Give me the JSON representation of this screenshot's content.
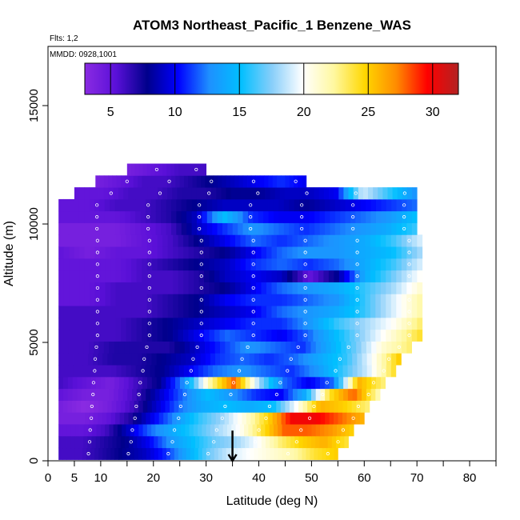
{
  "chart_data": {
    "type": "heatmap",
    "title": "ATOM3 Northeast_Pacific_1 Benzene_WAS",
    "flights_note": "Flts: 1,2",
    "dates_note": "MMDD: 0928,1001",
    "xlabel": "Latitude (deg N)",
    "ylabel": "Altitude (m)",
    "xlim": [
      0,
      85
    ],
    "ylim": [
      0,
      17500
    ],
    "x_ticks": [
      0,
      5,
      10,
      20,
      30,
      40,
      50,
      60,
      70,
      80
    ],
    "x_minor_ticks": [
      15,
      25,
      35,
      45,
      55,
      65,
      75,
      85
    ],
    "y_ticks": [
      0,
      5000,
      10000,
      15000
    ],
    "grid": false,
    "colorbar": {
      "ticks": [
        5,
        10,
        15,
        20,
        25,
        30
      ],
      "range": [
        3,
        32
      ],
      "colors": [
        "#8a2be2",
        "#5a10d8",
        "#00008b",
        "#0000ff",
        "#1e90ff",
        "#00bfff",
        "#87cefa",
        "#ffffff",
        "#fff8a0",
        "#ffd700",
        "#ff8c00",
        "#ff0000",
        "#b22222"
      ],
      "placement": "inside-top"
    },
    "marker": {
      "latitude": 35,
      "altitude_range": [
        600,
        0
      ]
    },
    "rows": [
      {
        "alt": 300,
        "lat_range": [
          2,
          55
        ],
        "values": [
          6,
          6,
          7,
          8,
          9,
          11,
          14,
          17,
          19,
          20,
          21,
          22,
          24,
          25
        ]
      },
      {
        "alt": 800,
        "lat_range": [
          2,
          57
        ],
        "values": [
          6,
          6,
          7,
          8,
          10,
          13,
          15,
          17,
          18,
          20,
          23,
          25,
          26,
          24
        ]
      },
      {
        "alt": 1300,
        "lat_range": [
          2,
          58
        ],
        "values": [
          5,
          5,
          6,
          9,
          12,
          14,
          16,
          18,
          20,
          24,
          28,
          28,
          27,
          25
        ]
      },
      {
        "alt": 1800,
        "lat_range": [
          2,
          60
        ],
        "values": [
          4,
          4,
          5,
          7,
          10,
          13,
          16,
          18,
          21,
          25,
          30,
          30,
          28,
          26
        ]
      },
      {
        "alt": 2300,
        "lat_range": [
          2,
          61
        ],
        "values": [
          4,
          3,
          4,
          6,
          9,
          12,
          14,
          15,
          14,
          15,
          20,
          26,
          25,
          23
        ]
      },
      {
        "alt": 2800,
        "lat_range": [
          2,
          63
        ],
        "values": [
          5,
          4,
          4,
          6,
          9,
          12,
          15,
          13,
          11,
          10,
          14,
          24,
          28,
          22
        ]
      },
      {
        "alt": 3300,
        "lat_range": [
          2,
          64
        ],
        "values": [
          6,
          5,
          4,
          6,
          8,
          13,
          22,
          28,
          18,
          12,
          10,
          12,
          26,
          23
        ]
      },
      {
        "alt": 3800,
        "lat_range": [
          2,
          66
        ],
        "values": [
          6,
          6,
          6,
          7,
          8,
          10,
          12,
          13,
          12,
          11,
          13,
          16,
          19,
          24
        ]
      },
      {
        "alt": 4300,
        "lat_range": [
          2,
          67
        ],
        "values": [
          6,
          6,
          7,
          7,
          8,
          9,
          11,
          12,
          11,
          12,
          14,
          16,
          20,
          25
        ]
      },
      {
        "alt": 4800,
        "lat_range": [
          2,
          69
        ],
        "values": [
          6,
          6,
          7,
          7,
          7,
          9,
          11,
          13,
          12,
          11,
          14,
          17,
          21,
          23
        ]
      },
      {
        "alt": 5300,
        "lat_range": [
          2,
          71
        ],
        "values": [
          6,
          6,
          6,
          7,
          8,
          10,
          12,
          11,
          10,
          12,
          15,
          18,
          21,
          24
        ]
      },
      {
        "alt": 5800,
        "lat_range": [
          2,
          71
        ],
        "values": [
          6,
          6,
          6,
          7,
          8,
          9,
          10,
          11,
          11,
          13,
          16,
          18,
          20,
          23
        ]
      },
      {
        "alt": 6300,
        "lat_range": [
          2,
          71
        ],
        "values": [
          6,
          6,
          6,
          6,
          7,
          8,
          9,
          10,
          12,
          13,
          14,
          16,
          19,
          22
        ]
      },
      {
        "alt": 6800,
        "lat_range": [
          2,
          71
        ],
        "values": [
          5,
          5,
          6,
          6,
          7,
          8,
          10,
          11,
          11,
          12,
          13,
          16,
          19,
          22
        ]
      },
      {
        "alt": 7300,
        "lat_range": [
          2,
          71
        ],
        "values": [
          5,
          5,
          6,
          6,
          6,
          7,
          8,
          10,
          12,
          13,
          14,
          16,
          18,
          21
        ]
      },
      {
        "alt": 7800,
        "lat_range": [
          2,
          71
        ],
        "values": [
          5,
          5,
          5,
          6,
          6,
          7,
          9,
          10,
          9,
          5,
          8,
          14,
          17,
          20
        ]
      },
      {
        "alt": 8300,
        "lat_range": [
          2,
          71
        ],
        "values": [
          5,
          5,
          5,
          6,
          7,
          8,
          9,
          11,
          12,
          11,
          12,
          14,
          16,
          19
        ]
      },
      {
        "alt": 8800,
        "lat_range": [
          2,
          71
        ],
        "values": [
          5,
          4,
          5,
          5,
          6,
          7,
          8,
          10,
          12,
          13,
          13,
          14,
          15,
          18
        ]
      },
      {
        "alt": 9300,
        "lat_range": [
          2,
          71
        ],
        "values": [
          4,
          4,
          4,
          5,
          6,
          8,
          10,
          12,
          11,
          12,
          13,
          14,
          16,
          19
        ]
      },
      {
        "alt": 9800,
        "lat_range": [
          2,
          70
        ],
        "values": [
          4,
          4,
          4,
          5,
          6,
          9,
          11,
          13,
          12,
          11,
          12,
          13,
          14,
          16
        ]
      },
      {
        "alt": 10300,
        "lat_range": [
          2,
          70
        ],
        "values": [
          5,
          5,
          5,
          6,
          7,
          9,
          15,
          11,
          10,
          10,
          11,
          12,
          13,
          15
        ]
      },
      {
        "alt": 10800,
        "lat_range": [
          2,
          70
        ],
        "values": [
          5,
          5,
          6,
          6,
          7,
          8,
          9,
          9,
          9,
          8,
          9,
          10,
          11,
          12
        ]
      },
      {
        "alt": 11300,
        "lat_range": [
          5,
          70
        ],
        "values": [
          5,
          5,
          6,
          6,
          7,
          7,
          8,
          8,
          9,
          9,
          10,
          19,
          16,
          13
        ]
      },
      {
        "alt": 11800,
        "lat_range": [
          9,
          49
        ],
        "values": [
          4,
          5,
          6,
          6,
          7,
          8,
          9,
          10,
          11,
          10
        ]
      },
      {
        "alt": 12300,
        "lat_range": [
          15,
          30
        ],
        "values": [
          4,
          5,
          6,
          6
        ]
      }
    ]
  }
}
